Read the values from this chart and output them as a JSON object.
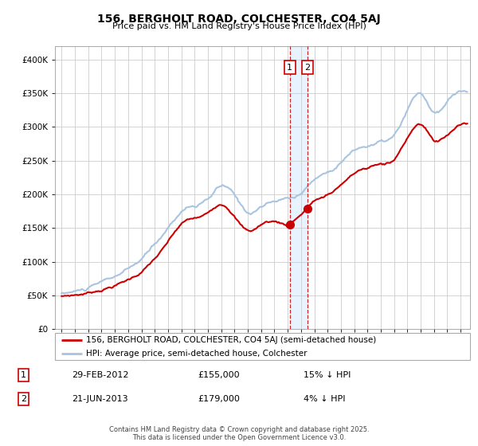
{
  "title": "156, BERGHOLT ROAD, COLCHESTER, CO4 5AJ",
  "subtitle": "Price paid vs. HM Land Registry's House Price Index (HPI)",
  "legend_line1": "156, BERGHOLT ROAD, COLCHESTER, CO4 5AJ (semi-detached house)",
  "legend_line2": "HPI: Average price, semi-detached house, Colchester",
  "sale1_date": "29-FEB-2012",
  "sale1_price": "£155,000",
  "sale1_hpi": "15% ↓ HPI",
  "sale2_date": "21-JUN-2013",
  "sale2_price": "£179,000",
  "sale2_hpi": "4% ↓ HPI",
  "footer": "Contains HM Land Registry data © Crown copyright and database right 2025.\nThis data is licensed under the Open Government Licence v3.0.",
  "hpi_color": "#a8c4e0",
  "price_color": "#cc0000",
  "dashed_line_color": "#cc0000",
  "shaded_color": "#ddeeff",
  "background_color": "#ffffff",
  "grid_color": "#cccccc",
  "sale1_x": 2012.16,
  "sale1_y": 155000,
  "sale2_x": 2013.47,
  "sale2_y": 179000,
  "ylim": [
    0,
    420000
  ],
  "xlim_left": 1994.5,
  "xlim_right": 2025.7,
  "yticks": [
    0,
    50000,
    100000,
    150000,
    200000,
    250000,
    300000,
    350000,
    400000
  ]
}
